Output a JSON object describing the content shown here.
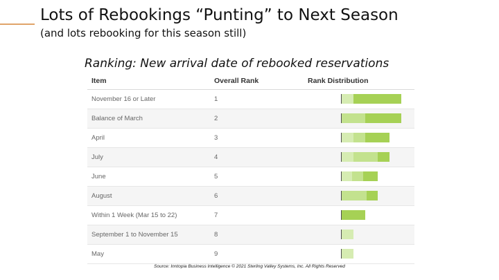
{
  "slide": {
    "title": "Lots of Rebookings “Punting” to Next Season",
    "subtitle": "(and lots rebooking for this season still)",
    "ranking_heading": "Ranking:  New arrival date of rebooked reservations",
    "source": "Source: Inntopia Business Intelligence © 2021 Sterling Valley Systems, Inc. All Rights Reserved",
    "accent_color": "#e0a468"
  },
  "table": {
    "headers": {
      "item": "Item",
      "rank": "Overall Rank",
      "distribution": "Rank Distribution"
    },
    "segment_colors": [
      "#d6ecb2",
      "#c3e28e",
      "#a6d155"
    ],
    "rows": [
      {
        "item": "November 16 or Later",
        "rank": "1",
        "distribution": [
          0.2,
          0.0,
          0.8
        ]
      },
      {
        "item": "Balance of March",
        "rank": "2",
        "distribution": [
          0.0,
          0.4,
          0.6
        ]
      },
      {
        "item": "April",
        "rank": "3",
        "distribution": [
          0.25,
          0.25,
          0.5
        ]
      },
      {
        "item": "July",
        "rank": "4",
        "distribution": [
          0.25,
          0.5,
          0.25
        ]
      },
      {
        "item": "June",
        "rank": "5",
        "distribution": [
          0.3,
          0.3,
          0.4
        ]
      },
      {
        "item": "August",
        "rank": "6",
        "distribution": [
          0.0,
          0.7,
          0.3
        ]
      },
      {
        "item": "Within 1 Week (Mar 15 to 22)",
        "rank": "7",
        "distribution": [
          0.0,
          0.0,
          1.0
        ]
      },
      {
        "item": "September 1 to November 15",
        "rank": "8",
        "distribution": [
          1.0,
          0.0,
          0.0
        ]
      },
      {
        "item": "May",
        "rank": "9",
        "distribution": [
          1.0,
          0.0,
          0.0
        ]
      }
    ],
    "bar_totals": [
      1.0,
      1.0,
      0.8,
      0.8,
      0.6,
      0.6,
      0.4,
      0.2,
      0.2
    ]
  }
}
